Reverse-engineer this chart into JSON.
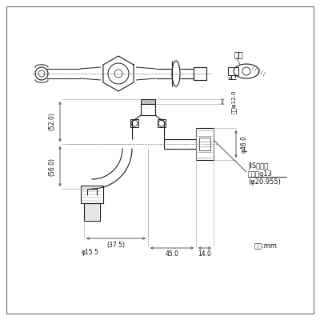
{
  "bg_color": "#ffffff",
  "lc": "#1a1a1a",
  "tc": "#111111",
  "ann": {
    "kagi": "かぎ",
    "d52": "(52.0)",
    "d56": "(56.0)",
    "d37": "(37.5)",
    "d45": "45.0",
    "d14": "14.0",
    "p155": "φ15.5",
    "p46": "φ46.0",
    "np12": "内径φ12.0",
    "jis1": "JIS給水栓",
    "jis2": "取付ねց13",
    "jis3": "(φ20.955)",
    "unit": "単位:mm"
  }
}
